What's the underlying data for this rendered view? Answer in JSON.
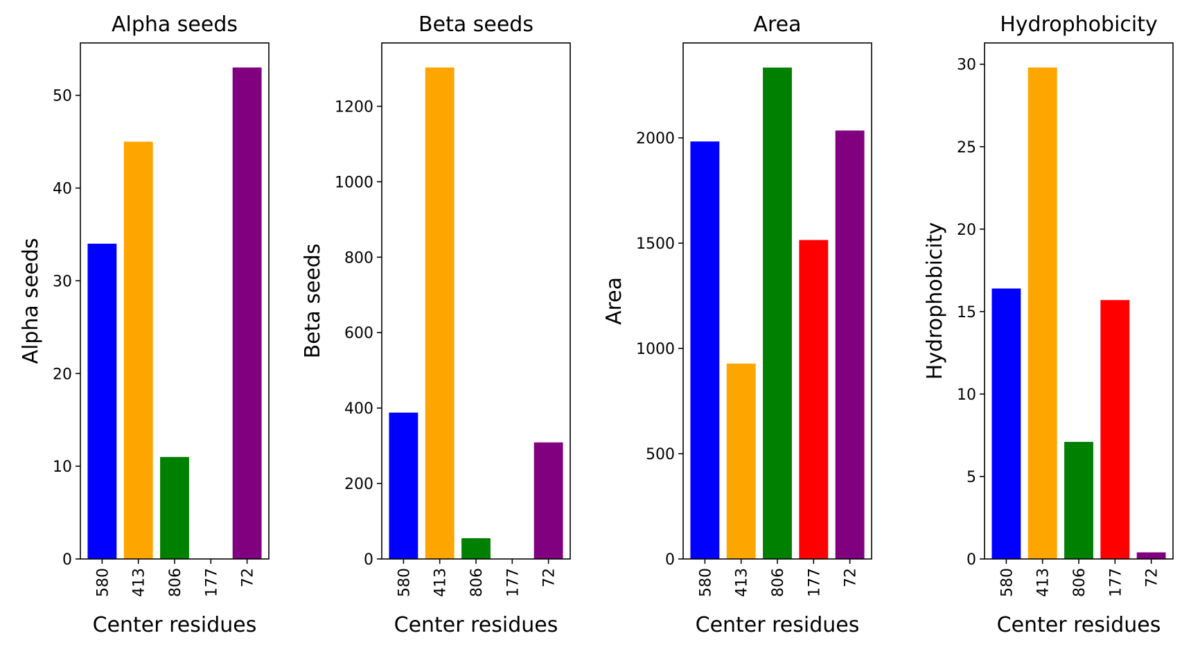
{
  "chart_data": [
    {
      "type": "bar",
      "title": "Alpha seeds",
      "xlabel": "Center residues",
      "ylabel": "Alpha seeds",
      "categories": [
        "580",
        "413",
        "806",
        "177",
        "72"
      ],
      "values": [
        34,
        45,
        11,
        0,
        53
      ],
      "colors": [
        "#0000ff",
        "#ffa500",
        "#008000",
        "#ff0000",
        "#800080"
      ],
      "ylim": [
        0,
        55.65
      ],
      "yticks": [
        0,
        10,
        20,
        30,
        40,
        50
      ]
    },
    {
      "type": "bar",
      "title": "Beta seeds",
      "xlabel": "Center residues",
      "ylabel": "Beta seeds",
      "categories": [
        "580",
        "413",
        "806",
        "177",
        "72"
      ],
      "values": [
        388,
        1303,
        55,
        0,
        309
      ],
      "colors": [
        "#0000ff",
        "#ffa500",
        "#008000",
        "#ff0000",
        "#800080"
      ],
      "ylim": [
        0,
        1368
      ],
      "yticks": [
        0,
        200,
        400,
        600,
        800,
        1000,
        1200
      ]
    },
    {
      "type": "bar",
      "title": "Area",
      "xlabel": "Center residues",
      "ylabel": "Area",
      "categories": [
        "580",
        "413",
        "806",
        "177",
        "72"
      ],
      "values": [
        1983,
        928,
        2334,
        1515,
        2035
      ],
      "colors": [
        "#0000ff",
        "#ffa500",
        "#008000",
        "#ff0000",
        "#800080"
      ],
      "ylim": [
        0,
        2451
      ],
      "yticks": [
        0,
        500,
        1000,
        1500,
        2000
      ]
    },
    {
      "type": "bar",
      "title": "Hydrophobicity",
      "xlabel": "Center residues",
      "ylabel": "Hydrophobicity",
      "categories": [
        "580",
        "413",
        "806",
        "177",
        "72"
      ],
      "values": [
        16.4,
        29.8,
        7.1,
        15.7,
        0.4
      ],
      "colors": [
        "#0000ff",
        "#ffa500",
        "#008000",
        "#ff0000",
        "#800080"
      ],
      "ylim": [
        0,
        31.29
      ],
      "yticks": [
        0,
        5,
        10,
        15,
        20,
        25,
        30
      ]
    }
  ]
}
